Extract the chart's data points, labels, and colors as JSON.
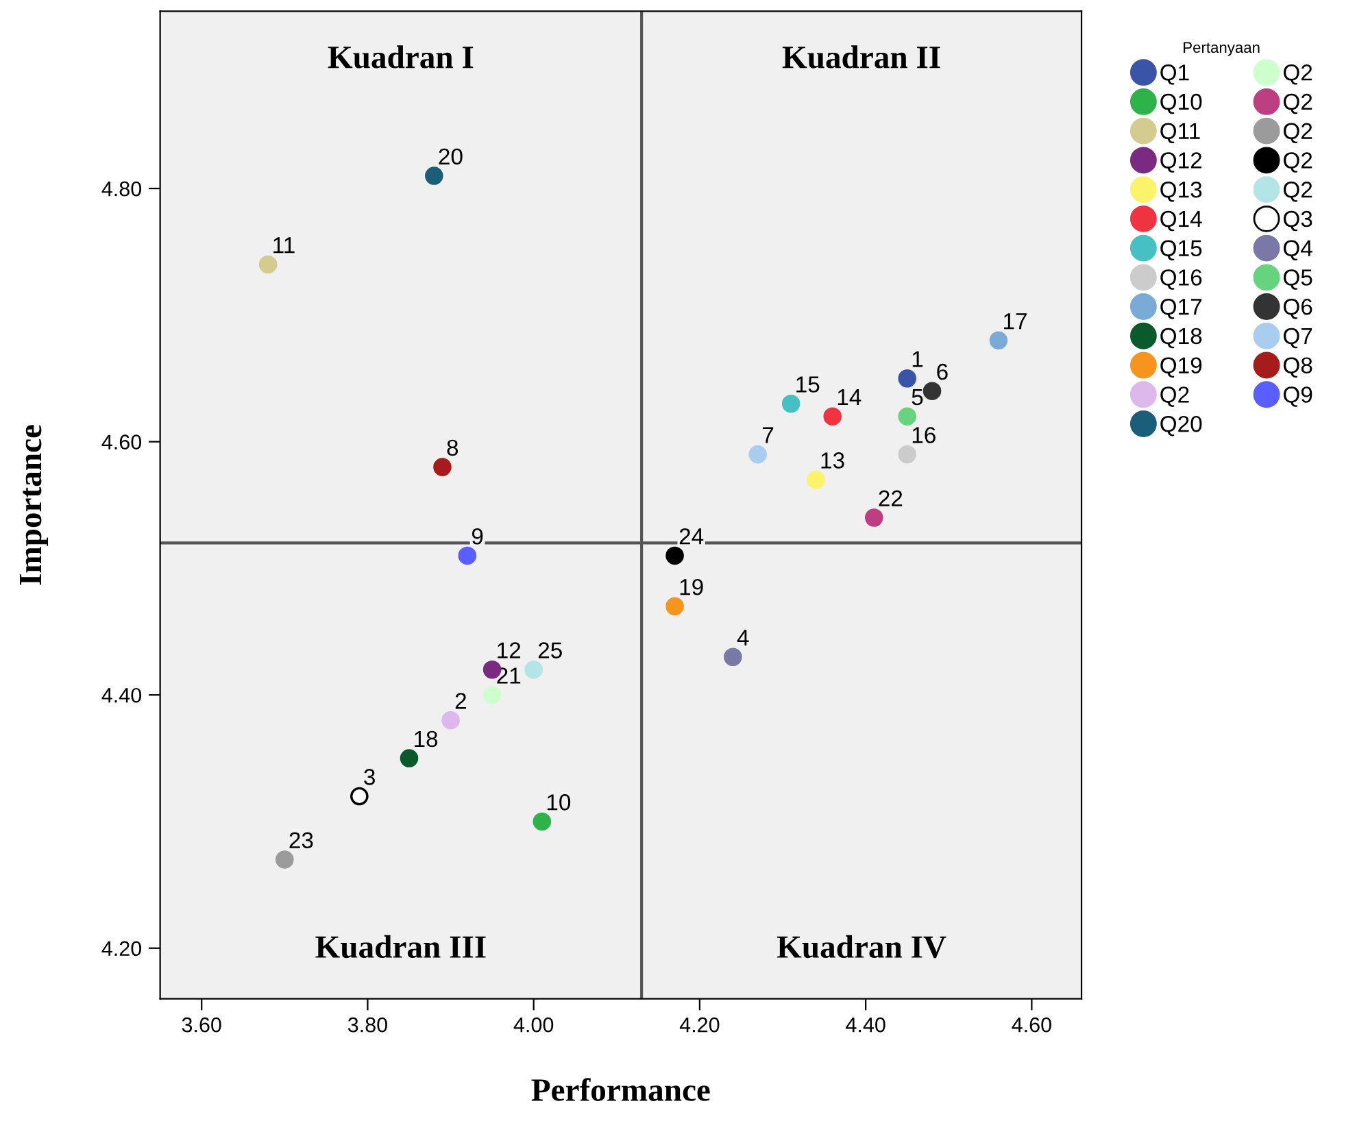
{
  "chart_data": {
    "type": "scatter",
    "xlabel": "Performance",
    "ylabel": "Importance",
    "legend_title": "Pertanyaan",
    "legend": "right",
    "grid": false,
    "marker": "circle",
    "xlim": [
      3.55,
      4.66
    ],
    "ylim": [
      4.16,
      4.94
    ],
    "xticks": [
      {
        "value": 3.6,
        "label": "3.60"
      },
      {
        "value": 3.8,
        "label": "3.80"
      },
      {
        "value": 4.0,
        "label": "4.00"
      },
      {
        "value": 4.2,
        "label": "4.20"
      },
      {
        "value": 4.4,
        "label": "4.40"
      },
      {
        "value": 4.6,
        "label": "4.60"
      }
    ],
    "yticks": [
      {
        "value": 4.2,
        "label": "4.20"
      },
      {
        "value": 4.4,
        "label": "4.40"
      },
      {
        "value": 4.6,
        "label": "4.60"
      },
      {
        "value": 4.8,
        "label": "4.80"
      }
    ],
    "ref_lines": [
      {
        "axis": "x",
        "value": 4.13,
        "color": "#555555"
      },
      {
        "axis": "y",
        "value": 4.52,
        "color": "#555555"
      }
    ],
    "series": [
      {
        "name": "Q1",
        "color": "#3a55a8",
        "x": [
          4.45
        ],
        "values": [
          4.65
        ]
      },
      {
        "name": "Q10",
        "color": "#2db34a",
        "x": [
          4.01
        ],
        "values": [
          4.3
        ]
      },
      {
        "name": "Q11",
        "color": "#d4cc8e",
        "x": [
          3.68
        ],
        "values": [
          4.74
        ]
      },
      {
        "name": "Q12",
        "color": "#7b2a82",
        "x": [
          3.95
        ],
        "values": [
          4.42
        ]
      },
      {
        "name": "Q13",
        "color": "#fbf46a",
        "x": [
          4.34
        ],
        "values": [
          4.57
        ]
      },
      {
        "name": "Q14",
        "color": "#ef3340",
        "x": [
          4.36
        ],
        "values": [
          4.62
        ]
      },
      {
        "name": "Q15",
        "color": "#45c1c4",
        "x": [
          4.31
        ],
        "values": [
          4.63
        ]
      },
      {
        "name": "Q16",
        "color": "#cccccc",
        "x": [
          4.45
        ],
        "values": [
          4.59
        ]
      },
      {
        "name": "Q17",
        "color": "#7aaad6",
        "x": [
          4.56
        ],
        "values": [
          4.68
        ]
      },
      {
        "name": "Q18",
        "color": "#0b5a2c",
        "x": [
          3.85
        ],
        "values": [
          4.35
        ]
      },
      {
        "name": "Q19",
        "color": "#f7941d",
        "x": [
          4.17
        ],
        "values": [
          4.47
        ]
      },
      {
        "name": "Q2",
        "color": "#dcb8ec",
        "x": [
          3.9
        ],
        "values": [
          4.38
        ]
      },
      {
        "name": "Q20",
        "color": "#1a5e78",
        "x": [
          3.88
        ],
        "values": [
          4.81
        ]
      },
      {
        "name": "Q2",
        "color": "#ccffcc",
        "x": [
          3.95
        ],
        "values": [
          4.4
        ]
      },
      {
        "name": "Q2",
        "color": "#bd3f82",
        "x": [
          4.41
        ],
        "values": [
          4.54
        ]
      },
      {
        "name": "Q2",
        "color": "#9b9b9b",
        "x": [
          3.7
        ],
        "values": [
          4.27
        ]
      },
      {
        "name": "Q2",
        "color": "#000000",
        "x": [
          4.17
        ],
        "values": [
          4.51
        ]
      },
      {
        "name": "Q2",
        "color": "#b3e5e6",
        "x": [
          4.0
        ],
        "values": [
          4.42
        ]
      },
      {
        "name": "Q3",
        "color": "#ffffff",
        "x": [
          3.79
        ],
        "values": [
          4.32
        ]
      },
      {
        "name": "Q4",
        "color": "#7a78a6",
        "x": [
          4.24
        ],
        "values": [
          4.43
        ]
      },
      {
        "name": "Q5",
        "color": "#66d47d",
        "x": [
          4.45
        ],
        "values": [
          4.62
        ]
      },
      {
        "name": "Q6",
        "color": "#333333",
        "x": [
          4.48
        ],
        "values": [
          4.64
        ]
      },
      {
        "name": "Q7",
        "color": "#a9cdef",
        "x": [
          4.27
        ],
        "values": [
          4.59
        ]
      },
      {
        "name": "Q8",
        "color": "#a61c1c",
        "x": [
          3.89
        ],
        "values": [
          4.58
        ]
      },
      {
        "name": "Q9",
        "color": "#5b5eff",
        "x": [
          3.92
        ],
        "values": [
          4.51
        ]
      }
    ],
    "annotations": [
      "Kuadran I",
      "Kuadran II",
      "Kuadran III",
      "Kuadran IV",
      {
        "text": "1",
        "x": 4.45,
        "y": 4.65
      },
      {
        "text": "2",
        "x": 3.9,
        "y": 4.38
      },
      {
        "text": "3",
        "x": 3.79,
        "y": 4.32
      },
      {
        "text": "4",
        "x": 4.24,
        "y": 4.43
      },
      {
        "text": "5",
        "x": 4.45,
        "y": 4.62
      },
      {
        "text": "6",
        "x": 4.48,
        "y": 4.64
      },
      {
        "text": "7",
        "x": 4.27,
        "y": 4.59
      },
      {
        "text": "8",
        "x": 3.89,
        "y": 4.58
      },
      {
        "text": "9",
        "x": 3.92,
        "y": 4.51
      },
      {
        "text": "10",
        "x": 4.01,
        "y": 4.3
      },
      {
        "text": "11",
        "x": 3.68,
        "y": 4.74
      },
      {
        "text": "12",
        "x": 3.95,
        "y": 4.42
      },
      {
        "text": "13",
        "x": 4.34,
        "y": 4.57
      },
      {
        "text": "14",
        "x": 4.36,
        "y": 4.62
      },
      {
        "text": "15",
        "x": 4.31,
        "y": 4.63
      },
      {
        "text": "16",
        "x": 4.45,
        "y": 4.59
      },
      {
        "text": "17",
        "x": 4.56,
        "y": 4.68
      },
      {
        "text": "18",
        "x": 3.85,
        "y": 4.35
      },
      {
        "text": "19",
        "x": 4.17,
        "y": 4.47
      },
      {
        "text": "20",
        "x": 3.88,
        "y": 4.81
      },
      {
        "text": "21",
        "x": 3.95,
        "y": 4.4
      },
      {
        "text": "22",
        "x": 4.41,
        "y": 4.54
      },
      {
        "text": "23",
        "x": 3.7,
        "y": 4.27
      },
      {
        "text": "24",
        "x": 4.17,
        "y": 4.51
      },
      {
        "text": "25",
        "x": 4.0,
        "y": 4.42
      }
    ]
  }
}
